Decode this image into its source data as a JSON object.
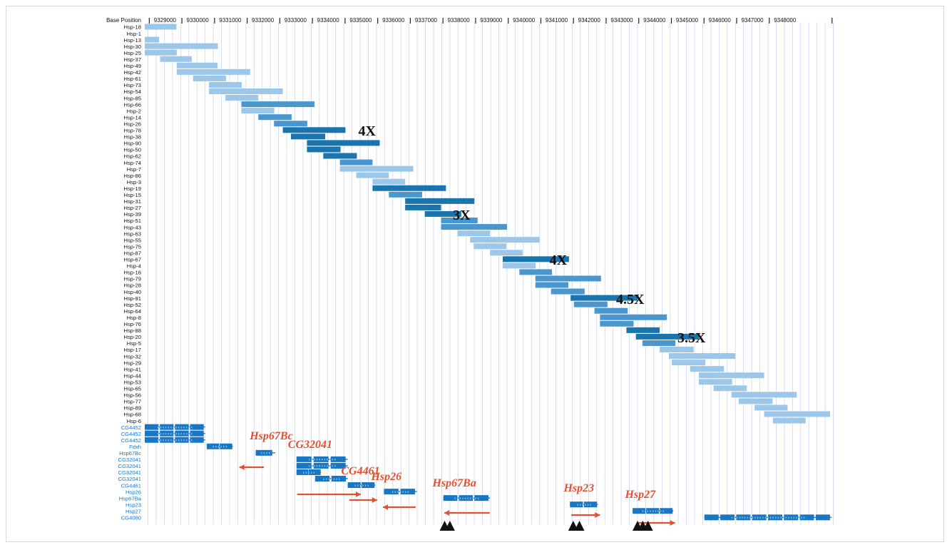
{
  "chart_data": {
    "type": "genome-browser",
    "xlabel": "Base Position",
    "x_ticks": [
      9329000,
      9330000,
      9331000,
      9332000,
      9333000,
      9334000,
      9335000,
      9336000,
      9337000,
      9338000,
      9339000,
      9340000,
      9341000,
      9342000,
      9343000,
      9344000,
      9345000,
      9346000,
      9347000,
      9348000
    ],
    "tracks": [
      {
        "name": "Hsp-18",
        "start": 9327900,
        "end": 9328870,
        "shade": "light"
      },
      {
        "name": "Hsp-1",
        "start": null,
        "end": null,
        "shade": "light"
      },
      {
        "name": "Hsp-13",
        "start": 9327900,
        "end": 9328340,
        "shade": "light"
      },
      {
        "name": "Hsp-30",
        "start": 9327900,
        "end": 9330140,
        "shade": "light"
      },
      {
        "name": "Hsp-25",
        "start": 9327900,
        "end": 9328880,
        "shade": "light"
      },
      {
        "name": "Hsp-37",
        "start": 9328370,
        "end": 9329340,
        "shade": "light"
      },
      {
        "name": "Hsp-49",
        "start": 9328880,
        "end": 9330130,
        "shade": "light"
      },
      {
        "name": "Hsp-42",
        "start": 9328880,
        "end": 9331130,
        "shade": "light"
      },
      {
        "name": "Hsp-61",
        "start": 9329380,
        "end": 9330390,
        "shade": "light"
      },
      {
        "name": "Hsp-73",
        "start": 9329870,
        "end": 9330870,
        "shade": "light"
      },
      {
        "name": "Hsp-54",
        "start": 9329870,
        "end": 9332130,
        "shade": "light"
      },
      {
        "name": "Hsp-85",
        "start": 9330370,
        "end": 9331380,
        "shade": "light"
      },
      {
        "name": "Hsp-66",
        "start": 9330860,
        "end": 9333100,
        "shade": "mid"
      },
      {
        "name": "Hsp-2",
        "start": 9330860,
        "end": 9331870,
        "shade": "light"
      },
      {
        "name": "Hsp-14",
        "start": 9331380,
        "end": 9332400,
        "shade": "mid"
      },
      {
        "name": "Hsp-26",
        "start": 9331860,
        "end": 9332880,
        "shade": "mid"
      },
      {
        "name": "Hsp-78",
        "start": 9332130,
        "end": 9334050,
        "shade": "dark"
      },
      {
        "name": "Hsp-38",
        "start": 9332380,
        "end": 9333430,
        "shade": "dark"
      },
      {
        "name": "Hsp-90",
        "start": 9332870,
        "end": 9335100,
        "shade": "dark"
      },
      {
        "name": "Hsp-50",
        "start": 9332870,
        "end": 9333900,
        "shade": "dark"
      },
      {
        "name": "Hsp-62",
        "start": 9333370,
        "end": 9334400,
        "shade": "dark"
      },
      {
        "name": "Hsp-74",
        "start": 9333880,
        "end": 9334880,
        "shade": "mid"
      },
      {
        "name": "Hsp-7",
        "start": 9333880,
        "end": 9336130,
        "shade": "light"
      },
      {
        "name": "Hsp-86",
        "start": 9334380,
        "end": 9335380,
        "shade": "light"
      },
      {
        "name": "Hsp-3",
        "start": 9334880,
        "end": 9335880,
        "shade": "light"
      },
      {
        "name": "Hsp-19",
        "start": 9334880,
        "end": 9337130,
        "shade": "dark"
      },
      {
        "name": "Hsp-15",
        "start": 9335380,
        "end": 9336400,
        "shade": "mid"
      },
      {
        "name": "Hsp-31",
        "start": 9335880,
        "end": 9338000,
        "shade": "dark"
      },
      {
        "name": "Hsp-27",
        "start": 9335880,
        "end": 9336980,
        "shade": "dark"
      },
      {
        "name": "Hsp-39",
        "start": 9336480,
        "end": 9337600,
        "shade": "dark"
      },
      {
        "name": "Hsp-51",
        "start": 9336980,
        "end": 9338100,
        "shade": "mid"
      },
      {
        "name": "Hsp-43",
        "start": 9336980,
        "end": 9339000,
        "shade": "mid"
      },
      {
        "name": "Hsp-63",
        "start": 9337480,
        "end": 9338480,
        "shade": "light"
      },
      {
        "name": "Hsp-55",
        "start": 9337870,
        "end": 9340000,
        "shade": "light"
      },
      {
        "name": "Hsp-75",
        "start": 9337980,
        "end": 9338980,
        "shade": "light"
      },
      {
        "name": "Hsp-87",
        "start": 9338480,
        "end": 9339480,
        "shade": "light"
      },
      {
        "name": "Hsp-67",
        "start": 9338870,
        "end": 9340900,
        "shade": "dark"
      },
      {
        "name": "Hsp-4",
        "start": 9338870,
        "end": 9339880,
        "shade": "light"
      },
      {
        "name": "Hsp-16",
        "start": 9339380,
        "end": 9340380,
        "shade": "mid"
      },
      {
        "name": "Hsp-79",
        "start": 9339870,
        "end": 9341880,
        "shade": "mid"
      },
      {
        "name": "Hsp-28",
        "start": 9339870,
        "end": 9340880,
        "shade": "mid"
      },
      {
        "name": "Hsp-40",
        "start": 9340350,
        "end": 9341380,
        "shade": "mid"
      },
      {
        "name": "Hsp-91",
        "start": 9340950,
        "end": 9343000,
        "shade": "dark"
      },
      {
        "name": "Hsp-52",
        "start": 9341050,
        "end": 9342080,
        "shade": "mid"
      },
      {
        "name": "Hsp-64",
        "start": 9341680,
        "end": 9342700,
        "shade": "mid"
      },
      {
        "name": "Hsp-8",
        "start": 9341850,
        "end": 9343900,
        "shade": "mid"
      },
      {
        "name": "Hsp-76",
        "start": 9341850,
        "end": 9342880,
        "shade": "mid"
      },
      {
        "name": "Hsp-88",
        "start": 9342660,
        "end": 9343680,
        "shade": "dark"
      },
      {
        "name": "Hsp-20",
        "start": 9342950,
        "end": 9344880,
        "shade": "dark"
      },
      {
        "name": "Hsp-5",
        "start": 9343150,
        "end": 9344160,
        "shade": "mid"
      },
      {
        "name": "Hsp-17",
        "start": 9343680,
        "end": 9344720,
        "shade": "light"
      },
      {
        "name": "Hsp-32",
        "start": 9343960,
        "end": 9346000,
        "shade": "light"
      },
      {
        "name": "Hsp-29",
        "start": 9344050,
        "end": 9345080,
        "shade": "light"
      },
      {
        "name": "Hsp-41",
        "start": 9344610,
        "end": 9345650,
        "shade": "light"
      },
      {
        "name": "Hsp-44",
        "start": 9344880,
        "end": 9346880,
        "shade": "light"
      },
      {
        "name": "Hsp-53",
        "start": 9344880,
        "end": 9345900,
        "shade": "light"
      },
      {
        "name": "Hsp-65",
        "start": 9345330,
        "end": 9346350,
        "shade": "light"
      },
      {
        "name": "Hsp-56",
        "start": 9345880,
        "end": 9347880,
        "shade": "light"
      },
      {
        "name": "Hsp-77",
        "start": 9346100,
        "end": 9347140,
        "shade": "light"
      },
      {
        "name": "Hsp-89",
        "start": 9346590,
        "end": 9347600,
        "shade": "light"
      },
      {
        "name": "Hsp-68",
        "start": 9346880,
        "end": 9348900,
        "shade": "light"
      },
      {
        "name": "Hsp-6",
        "start": 9347150,
        "end": 9348150,
        "shade": "light"
      }
    ],
    "gene_tracks": [
      "CG4452",
      "CG4452",
      "CG4452",
      "Fdxh",
      "Hsp67Bc",
      "CG32041",
      "CG32041",
      "CG32041",
      "CG32041",
      "CG4461",
      "Hsp26",
      "Hsp67Ba",
      "Hsp23",
      "Hsp27",
      "CG4080"
    ],
    "genes": [
      {
        "name": "CG4452",
        "track": 0,
        "start": 9327900,
        "end": 9329750,
        "strand": "-"
      },
      {
        "name": "CG4452",
        "track": 1,
        "start": 9327900,
        "end": 9329750,
        "strand": "-"
      },
      {
        "name": "CG4452",
        "track": 2,
        "start": 9327900,
        "end": 9329750,
        "strand": "-"
      },
      {
        "name": "Fdxh",
        "track": 3,
        "start": 9329800,
        "end": 9330600,
        "strand": "+"
      },
      {
        "name": "Hsp67Bc",
        "track": 4,
        "start": 9331300,
        "end": 9331900,
        "strand": "-"
      },
      {
        "name": "CG32041",
        "track": 5,
        "start": 9332550,
        "end": 9334120,
        "strand": "+"
      },
      {
        "name": "CG32041",
        "track": 6,
        "start": 9332550,
        "end": 9334120,
        "strand": "+"
      },
      {
        "name": "CG32041",
        "track": 7,
        "start": 9332550,
        "end": 9333300,
        "strand": "+"
      },
      {
        "name": "CG32041",
        "track": 8,
        "start": 9333120,
        "end": 9334120,
        "strand": "+"
      },
      {
        "name": "CG4461",
        "track": 9,
        "start": 9334120,
        "end": 9334970,
        "strand": "+"
      },
      {
        "name": "Hsp26",
        "track": 10,
        "start": 9335230,
        "end": 9336240,
        "strand": "-"
      },
      {
        "name": "Hsp67Ba",
        "track": 11,
        "start": 9337050,
        "end": 9338480,
        "strand": "-"
      },
      {
        "name": "Hsp23",
        "track": 12,
        "start": 9340930,
        "end": 9341790,
        "strand": "+"
      },
      {
        "name": "Hsp27",
        "track": 13,
        "start": 9342850,
        "end": 9344100,
        "strand": "+"
      },
      {
        "name": "CG4080",
        "track": 14,
        "start": 9345050,
        "end": 9348950,
        "strand": "+"
      }
    ],
    "gene_labels": [
      {
        "text": "Hsp67Bc",
        "pos": 9331380,
        "arrow_from": 9331550,
        "arrow_to": 9330800,
        "arrow_dir": "left"
      },
      {
        "text": "CG32041",
        "pos": 9332550,
        "arrow_from": 9332570,
        "arrow_to": 9334520,
        "arrow_dir": "right"
      },
      {
        "text": "CG4461",
        "pos": 9334180,
        "arrow_from": 9334170,
        "arrow_to": 9335020,
        "arrow_dir": "right"
      },
      {
        "text": "Hsp26",
        "pos": 9335100,
        "arrow_from": 9336200,
        "arrow_to": 9335200,
        "arrow_dir": "left"
      },
      {
        "text": "Hsp67Ba",
        "pos": 9336980,
        "arrow_from": 9338470,
        "arrow_to": 9337080,
        "arrow_dir": "left"
      },
      {
        "text": "Hsp23",
        "pos": 9341000,
        "arrow_from": 9340970,
        "arrow_to": 9341850,
        "arrow_dir": "right"
      },
      {
        "text": "Hsp27",
        "pos": 9342880,
        "arrow_from": 9343020,
        "arrow_to": 9344150,
        "arrow_dir": "right"
      }
    ],
    "coverage_labels": [
      {
        "text": "4X",
        "pos": 9335100,
        "track": "Hsp-78"
      },
      {
        "text": "3X",
        "pos": 9338000,
        "track": "Hsp-39"
      },
      {
        "text": "4X",
        "pos": 9340960,
        "track": "Hsp-67"
      },
      {
        "text": "4.5X",
        "pos": 9343000,
        "track": "Hsp-91"
      },
      {
        "text": "3.5X",
        "pos": 9344880,
        "track": "Hsp-20"
      }
    ],
    "markers": [
      9337090,
      9337250,
      9341030,
      9341220,
      9343000,
      9343160,
      9343320
    ],
    "colors": {
      "light": "#9cc7e8",
      "mid": "#4a97cf",
      "dark": "#1a74ad",
      "gene": "#1877c4",
      "gene_label": "#e2512e",
      "grid": "#ccd6f0",
      "track_label": "#1877c4"
    }
  }
}
